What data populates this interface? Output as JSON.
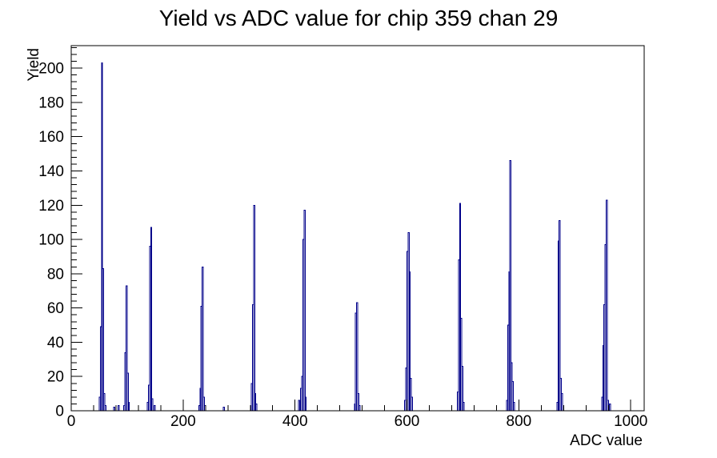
{
  "title": "Yield vs ADC value for chip 359 chan 29",
  "axes": {
    "x": {
      "title": "ADC value",
      "min": 0,
      "max": 1024,
      "major_step": 200,
      "minor_step": 40,
      "tick_labels": [
        {
          "value": 0,
          "label": "0"
        },
        {
          "value": 200,
          "label": "200"
        },
        {
          "value": 400,
          "label": "400"
        },
        {
          "value": 600,
          "label": "600"
        },
        {
          "value": 800,
          "label": "800"
        },
        {
          "value": 1000,
          "label": "1000"
        }
      ]
    },
    "y": {
      "title": "Yield",
      "min": 0,
      "max": 213.15,
      "major_step": 20,
      "minor_step": 4,
      "tick_labels": [
        {
          "value": 0,
          "label": "0"
        },
        {
          "value": 20,
          "label": "20"
        },
        {
          "value": 40,
          "label": "40"
        },
        {
          "value": 60,
          "label": "60"
        },
        {
          "value": 80,
          "label": "80"
        },
        {
          "value": 100,
          "label": "100"
        },
        {
          "value": 120,
          "label": "120"
        },
        {
          "value": 140,
          "label": "140"
        },
        {
          "value": 160,
          "label": "160"
        },
        {
          "value": 180,
          "label": "180"
        },
        {
          "value": 200,
          "label": "200"
        }
      ]
    }
  },
  "chart_data": {
    "type": "bar",
    "subtype": "step-histogram",
    "title": "Yield vs ADC value for chip 359 chan 29",
    "xlabel": "ADC value",
    "ylabel": "Yield",
    "xlim": [
      0,
      1024
    ],
    "ylim": [
      0,
      213.15
    ],
    "grid": false,
    "legend": false,
    "line_color": "#00008a",
    "frame_color": "#000000",
    "background_color": "#ffffff",
    "bin_width": 2,
    "bins": [
      [
        50,
        8
      ],
      [
        52,
        49
      ],
      [
        54,
        203
      ],
      [
        56,
        83
      ],
      [
        58,
        10
      ],
      [
        60,
        3
      ],
      [
        76,
        2
      ],
      [
        84,
        3
      ],
      [
        94,
        3
      ],
      [
        96,
        34
      ],
      [
        98,
        73
      ],
      [
        100,
        22
      ],
      [
        102,
        5
      ],
      [
        136,
        5
      ],
      [
        138,
        15
      ],
      [
        140,
        96
      ],
      [
        142,
        107
      ],
      [
        144,
        7
      ],
      [
        148,
        3
      ],
      [
        228,
        3
      ],
      [
        230,
        13
      ],
      [
        232,
        61
      ],
      [
        234,
        84
      ],
      [
        236,
        8
      ],
      [
        238,
        3
      ],
      [
        272,
        2
      ],
      [
        320,
        3
      ],
      [
        322,
        16
      ],
      [
        324,
        62
      ],
      [
        326,
        120
      ],
      [
        328,
        10
      ],
      [
        330,
        4
      ],
      [
        406,
        6
      ],
      [
        410,
        13
      ],
      [
        412,
        20
      ],
      [
        414,
        100
      ],
      [
        416,
        117
      ],
      [
        418,
        8
      ],
      [
        506,
        4
      ],
      [
        508,
        57
      ],
      [
        510,
        63
      ],
      [
        512,
        10
      ],
      [
        514,
        3
      ],
      [
        596,
        6
      ],
      [
        598,
        25
      ],
      [
        600,
        93
      ],
      [
        602,
        104
      ],
      [
        604,
        81
      ],
      [
        606,
        19
      ],
      [
        608,
        8
      ],
      [
        690,
        11
      ],
      [
        692,
        88
      ],
      [
        694,
        121
      ],
      [
        696,
        54
      ],
      [
        698,
        26
      ],
      [
        700,
        5
      ],
      [
        778,
        6
      ],
      [
        780,
        50
      ],
      [
        782,
        81
      ],
      [
        784,
        146
      ],
      [
        786,
        28
      ],
      [
        788,
        17
      ],
      [
        790,
        5
      ],
      [
        868,
        5
      ],
      [
        870,
        99
      ],
      [
        872,
        111
      ],
      [
        874,
        19
      ],
      [
        876,
        10
      ],
      [
        948,
        8
      ],
      [
        950,
        38
      ],
      [
        952,
        62
      ],
      [
        954,
        97
      ],
      [
        956,
        123
      ],
      [
        958,
        6
      ],
      [
        962,
        4
      ]
    ],
    "peak_summary": [
      {
        "adc": 54,
        "yield": 203
      },
      {
        "adc": 98,
        "yield": 73
      },
      {
        "adc": 142,
        "yield": 107
      },
      {
        "adc": 234,
        "yield": 84
      },
      {
        "adc": 326,
        "yield": 120
      },
      {
        "adc": 416,
        "yield": 117
      },
      {
        "adc": 510,
        "yield": 63
      },
      {
        "adc": 602,
        "yield": 104
      },
      {
        "adc": 694,
        "yield": 121
      },
      {
        "adc": 784,
        "yield": 146
      },
      {
        "adc": 872,
        "yield": 111
      },
      {
        "adc": 956,
        "yield": 123
      }
    ]
  }
}
